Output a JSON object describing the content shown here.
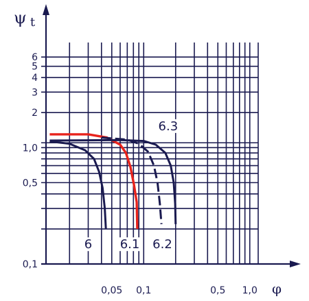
{
  "chart_data": {
    "type": "line",
    "ylabel": "ψ t",
    "xlabel": "φ",
    "x_scale": "log",
    "y_scale": "log",
    "xlim": [
      0.012,
      1.2
    ],
    "ylim": [
      0.1,
      8
    ],
    "x_tick_labels": [
      "0,05",
      "0,1",
      "0,5",
      "1,0"
    ],
    "x_tick_values": [
      0.05,
      0.1,
      0.5,
      1.0
    ],
    "y_tick_labels": [
      "0,1",
      "0,5",
      "1,0",
      "2",
      "3",
      "4",
      "5",
      "6"
    ],
    "y_tick_values": [
      0.1,
      0.5,
      1.0,
      2,
      3,
      4,
      5,
      6
    ],
    "colors": {
      "axis": "#1a1a50",
      "grid": "#1a1a50",
      "highlight": "#e8231c"
    },
    "series": [
      {
        "name": "6",
        "color": "#1a1a50",
        "dashed": false,
        "points": [
          [
            0.013,
            1.13
          ],
          [
            0.02,
            1.08
          ],
          [
            0.028,
            0.95
          ],
          [
            0.034,
            0.8
          ],
          [
            0.038,
            0.62
          ],
          [
            0.041,
            0.45
          ],
          [
            0.043,
            0.3
          ],
          [
            0.044,
            0.2
          ]
        ]
      },
      {
        "name": "6.1",
        "color": "#e8231c",
        "dashed": false,
        "points": [
          [
            0.013,
            1.3
          ],
          [
            0.03,
            1.3
          ],
          [
            0.045,
            1.22
          ],
          [
            0.06,
            1.06
          ],
          [
            0.068,
            0.9
          ],
          [
            0.075,
            0.68
          ],
          [
            0.081,
            0.48
          ],
          [
            0.086,
            0.34
          ],
          [
            0.087,
            0.2
          ]
        ]
      },
      {
        "name": "6.2",
        "color": "#1a1a50",
        "dashed": true,
        "points": [
          [
            0.04,
            1.22
          ],
          [
            0.07,
            1.17
          ],
          [
            0.09,
            1.08
          ],
          [
            0.11,
            0.92
          ],
          [
            0.125,
            0.7
          ],
          [
            0.135,
            0.5
          ],
          [
            0.142,
            0.33
          ],
          [
            0.147,
            0.22
          ]
        ]
      },
      {
        "name": "6.3",
        "color": "#1a1a50",
        "dashed": false,
        "points": [
          [
            0.013,
            1.15
          ],
          [
            0.06,
            1.16
          ],
          [
            0.1,
            1.14
          ],
          [
            0.13,
            1.06
          ],
          [
            0.16,
            0.9
          ],
          [
            0.18,
            0.7
          ],
          [
            0.192,
            0.5
          ],
          [
            0.198,
            0.33
          ],
          [
            0.2,
            0.22
          ]
        ]
      }
    ],
    "annotations": [
      {
        "text": "6",
        "x": 0.03,
        "y": 0.14
      },
      {
        "text": "6.1",
        "x": 0.074,
        "y": 0.14
      },
      {
        "text": "6.2",
        "x": 0.15,
        "y": 0.14
      },
      {
        "text": "6.3",
        "x": 0.17,
        "y": 1.45
      }
    ]
  }
}
